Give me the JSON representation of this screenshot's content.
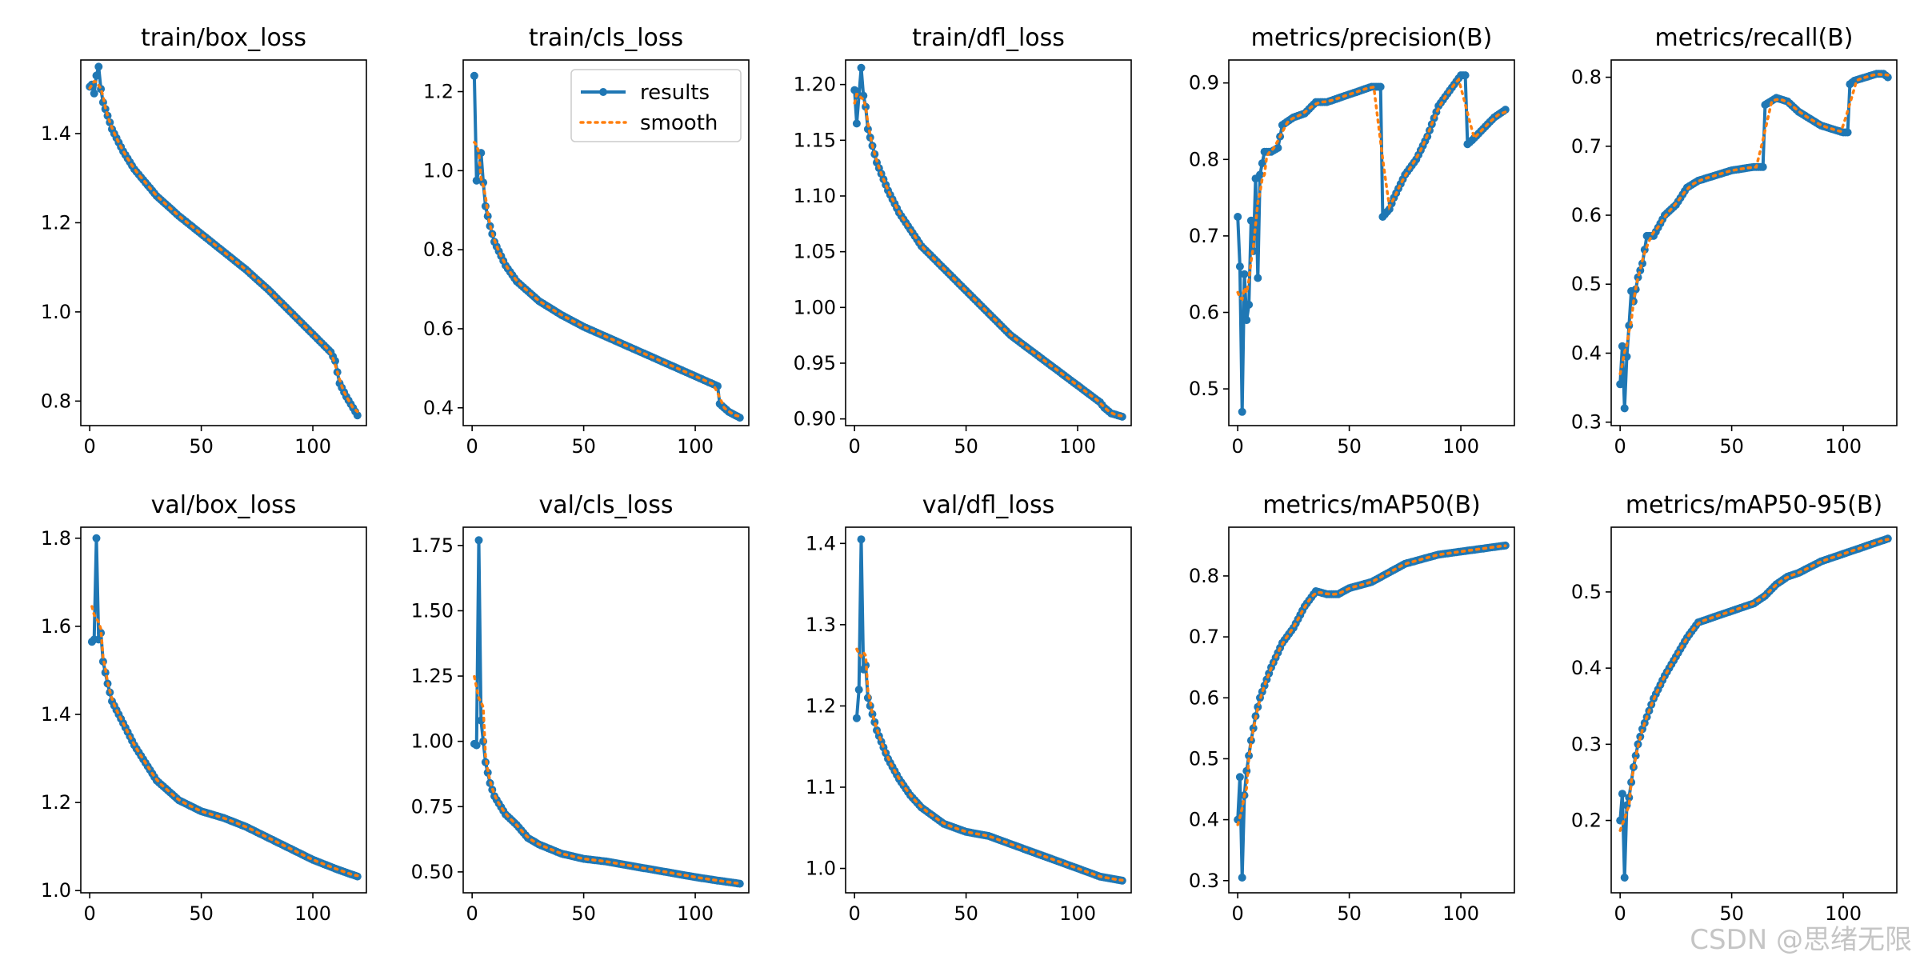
{
  "watermark": "CSDN @思绪无限",
  "colors": {
    "results": "#1f77b4",
    "smooth": "#ff7f0e",
    "axis": "#000000"
  },
  "legend": {
    "results_label": "results",
    "smooth_label": "smooth",
    "placement": "upper-right of train/cls_loss"
  },
  "chart_data": [
    {
      "type": "line",
      "title": "train/box_loss",
      "xlim": [
        -4,
        124
      ],
      "ylim": [
        0.745,
        1.565
      ],
      "xticks": [
        0,
        50,
        100
      ],
      "yticks": [
        0.8,
        1.0,
        1.2,
        1.4
      ],
      "ytick_labels": [
        "0.8",
        "1.0",
        "1.2",
        "1.4"
      ],
      "anchors": [
        [
          0,
          1.505
        ],
        [
          1,
          1.51
        ],
        [
          2,
          1.49
        ],
        [
          3,
          1.53
        ],
        [
          4,
          1.55
        ],
        [
          5,
          1.5
        ],
        [
          6,
          1.47
        ],
        [
          8,
          1.44
        ],
        [
          10,
          1.41
        ],
        [
          15,
          1.36
        ],
        [
          20,
          1.32
        ],
        [
          25,
          1.29
        ],
        [
          30,
          1.26
        ],
        [
          40,
          1.215
        ],
        [
          50,
          1.175
        ],
        [
          60,
          1.135
        ],
        [
          70,
          1.095
        ],
        [
          80,
          1.05
        ],
        [
          90,
          1.0
        ],
        [
          100,
          0.95
        ],
        [
          108,
          0.91
        ],
        [
          110,
          0.89
        ],
        [
          112,
          0.84
        ],
        [
          115,
          0.81
        ],
        [
          120,
          0.768
        ]
      ],
      "smooth_from": 0,
      "smooth_window": 2
    },
    {
      "type": "line",
      "title": "train/cls_loss",
      "xlim": [
        -4,
        124
      ],
      "ylim": [
        0.355,
        1.28
      ],
      "xticks": [
        0,
        50,
        100
      ],
      "yticks": [
        0.4,
        0.6,
        0.8,
        1.0,
        1.2
      ],
      "ytick_labels": [
        "0.4",
        "0.6",
        "0.8",
        "1.0",
        "1.2"
      ],
      "anchors": [
        [
          1,
          1.24
        ],
        [
          2,
          0.975
        ],
        [
          3,
          1.0
        ],
        [
          4,
          1.045
        ],
        [
          5,
          0.97
        ],
        [
          6,
          0.91
        ],
        [
          8,
          0.86
        ],
        [
          10,
          0.82
        ],
        [
          15,
          0.76
        ],
        [
          20,
          0.72
        ],
        [
          30,
          0.67
        ],
        [
          40,
          0.635
        ],
        [
          50,
          0.605
        ],
        [
          60,
          0.58
        ],
        [
          70,
          0.555
        ],
        [
          80,
          0.53
        ],
        [
          90,
          0.505
        ],
        [
          100,
          0.48
        ],
        [
          110,
          0.455
        ],
        [
          111,
          0.41
        ],
        [
          115,
          0.39
        ],
        [
          120,
          0.375
        ]
      ],
      "smooth_from": 1,
      "smooth_window": 2
    },
    {
      "type": "line",
      "title": "train/dfl_loss",
      "xlim": [
        -4,
        124
      ],
      "ylim": [
        0.894,
        1.222
      ],
      "xticks": [
        0,
        50,
        100
      ],
      "yticks": [
        0.9,
        0.95,
        1.0,
        1.05,
        1.1,
        1.15,
        1.2
      ],
      "ytick_labels": [
        "0.90",
        "0.95",
        "1.00",
        "1.05",
        "1.10",
        "1.15",
        "1.20"
      ],
      "anchors": [
        [
          0,
          1.195
        ],
        [
          1,
          1.165
        ],
        [
          2,
          1.19
        ],
        [
          3,
          1.215
        ],
        [
          4,
          1.19
        ],
        [
          5,
          1.18
        ],
        [
          6,
          1.16
        ],
        [
          10,
          1.13
        ],
        [
          15,
          1.105
        ],
        [
          20,
          1.085
        ],
        [
          30,
          1.055
        ],
        [
          40,
          1.035
        ],
        [
          50,
          1.015
        ],
        [
          60,
          0.995
        ],
        [
          70,
          0.975
        ],
        [
          80,
          0.96
        ],
        [
          90,
          0.945
        ],
        [
          100,
          0.93
        ],
        [
          110,
          0.915
        ],
        [
          112,
          0.91
        ],
        [
          115,
          0.905
        ],
        [
          120,
          0.902
        ]
      ],
      "smooth_from": 0,
      "smooth_window": 2
    },
    {
      "type": "line",
      "title": "metrics/precision(B)",
      "xlim": [
        -4,
        124
      ],
      "ylim": [
        0.452,
        0.93
      ],
      "xticks": [
        0,
        50,
        100
      ],
      "yticks": [
        0.5,
        0.6,
        0.7,
        0.8,
        0.9
      ],
      "ytick_labels": [
        "0.5",
        "0.6",
        "0.7",
        "0.8",
        "0.9"
      ],
      "anchors": [
        [
          0,
          0.725
        ],
        [
          1,
          0.66
        ],
        [
          2,
          0.47
        ],
        [
          3,
          0.65
        ],
        [
          4,
          0.59
        ],
        [
          5,
          0.61
        ],
        [
          6,
          0.72
        ],
        [
          7,
          0.68
        ],
        [
          8,
          0.775
        ],
        [
          9,
          0.645
        ],
        [
          10,
          0.78
        ],
        [
          12,
          0.81
        ],
        [
          15,
          0.81
        ],
        [
          18,
          0.815
        ],
        [
          20,
          0.845
        ],
        [
          25,
          0.855
        ],
        [
          30,
          0.86
        ],
        [
          35,
          0.875
        ],
        [
          40,
          0.875
        ],
        [
          50,
          0.885
        ],
        [
          55,
          0.89
        ],
        [
          60,
          0.895
        ],
        [
          64,
          0.895
        ],
        [
          65,
          0.725
        ],
        [
          68,
          0.735
        ],
        [
          70,
          0.75
        ],
        [
          75,
          0.78
        ],
        [
          80,
          0.8
        ],
        [
          85,
          0.83
        ],
        [
          90,
          0.87
        ],
        [
          95,
          0.89
        ],
        [
          100,
          0.91
        ],
        [
          102,
          0.91
        ],
        [
          103,
          0.82
        ],
        [
          105,
          0.825
        ],
        [
          110,
          0.84
        ],
        [
          115,
          0.855
        ],
        [
          120,
          0.865
        ]
      ],
      "smooth_from": 0,
      "smooth_window": 3
    },
    {
      "type": "line",
      "title": "metrics/recall(B)",
      "xlim": [
        -4,
        124
      ],
      "ylim": [
        0.295,
        0.825
      ],
      "xticks": [
        0,
        50,
        100
      ],
      "yticks": [
        0.3,
        0.4,
        0.5,
        0.6,
        0.7,
        0.8
      ],
      "ytick_labels": [
        "0.3",
        "0.4",
        "0.5",
        "0.6",
        "0.7",
        "0.8"
      ],
      "anchors": [
        [
          0,
          0.355
        ],
        [
          1,
          0.41
        ],
        [
          2,
          0.32
        ],
        [
          3,
          0.395
        ],
        [
          4,
          0.44
        ],
        [
          5,
          0.49
        ],
        [
          6,
          0.475
        ],
        [
          8,
          0.51
        ],
        [
          10,
          0.53
        ],
        [
          12,
          0.57
        ],
        [
          15,
          0.57
        ],
        [
          20,
          0.6
        ],
        [
          25,
          0.615
        ],
        [
          30,
          0.64
        ],
        [
          35,
          0.65
        ],
        [
          40,
          0.655
        ],
        [
          50,
          0.665
        ],
        [
          60,
          0.67
        ],
        [
          64,
          0.67
        ],
        [
          65,
          0.76
        ],
        [
          70,
          0.77
        ],
        [
          75,
          0.765
        ],
        [
          80,
          0.75
        ],
        [
          85,
          0.74
        ],
        [
          90,
          0.73
        ],
        [
          95,
          0.725
        ],
        [
          100,
          0.72
        ],
        [
          102,
          0.72
        ],
        [
          103,
          0.79
        ],
        [
          105,
          0.795
        ],
        [
          110,
          0.8
        ],
        [
          115,
          0.805
        ],
        [
          118,
          0.805
        ],
        [
          120,
          0.8
        ]
      ],
      "smooth_from": 0,
      "smooth_window": 3
    },
    {
      "type": "line",
      "title": "val/box_loss",
      "xlim": [
        -4,
        124
      ],
      "ylim": [
        0.995,
        1.825
      ],
      "xticks": [
        0,
        50,
        100
      ],
      "yticks": [
        1.0,
        1.2,
        1.4,
        1.6,
        1.8
      ],
      "ytick_labels": [
        "1.0",
        "1.2",
        "1.4",
        "1.6",
        "1.8"
      ],
      "anchors": [
        [
          1,
          1.565
        ],
        [
          2,
          1.57
        ],
        [
          3,
          1.8
        ],
        [
          4,
          1.57
        ],
        [
          5,
          1.585
        ],
        [
          6,
          1.52
        ],
        [
          8,
          1.47
        ],
        [
          10,
          1.43
        ],
        [
          15,
          1.38
        ],
        [
          20,
          1.33
        ],
        [
          25,
          1.29
        ],
        [
          30,
          1.25
        ],
        [
          40,
          1.205
        ],
        [
          50,
          1.18
        ],
        [
          60,
          1.165
        ],
        [
          70,
          1.145
        ],
        [
          80,
          1.12
        ],
        [
          90,
          1.095
        ],
        [
          100,
          1.07
        ],
        [
          110,
          1.05
        ],
        [
          120,
          1.032
        ]
      ],
      "smooth_from": 1,
      "smooth_window": 2
    },
    {
      "type": "line",
      "title": "val/cls_loss",
      "xlim": [
        -4,
        124
      ],
      "ylim": [
        0.42,
        1.82
      ],
      "xticks": [
        0,
        50,
        100
      ],
      "yticks": [
        0.5,
        0.75,
        1.0,
        1.25,
        1.5,
        1.75
      ],
      "ytick_labels": [
        "0.50",
        "0.75",
        "1.00",
        "1.25",
        "1.50",
        "1.75"
      ],
      "anchors": [
        [
          1,
          0.99
        ],
        [
          2,
          0.985
        ],
        [
          3,
          1.77
        ],
        [
          4,
          1.08
        ],
        [
          5,
          1.0
        ],
        [
          6,
          0.92
        ],
        [
          8,
          0.84
        ],
        [
          10,
          0.79
        ],
        [
          15,
          0.72
        ],
        [
          20,
          0.68
        ],
        [
          25,
          0.63
        ],
        [
          30,
          0.605
        ],
        [
          40,
          0.57
        ],
        [
          50,
          0.55
        ],
        [
          60,
          0.54
        ],
        [
          70,
          0.525
        ],
        [
          80,
          0.51
        ],
        [
          90,
          0.495
        ],
        [
          100,
          0.48
        ],
        [
          110,
          0.467
        ],
        [
          120,
          0.455
        ]
      ],
      "smooth_from": 1,
      "smooth_window": 2
    },
    {
      "type": "line",
      "title": "val/dfl_loss",
      "xlim": [
        -4,
        124
      ],
      "ylim": [
        0.97,
        1.42
      ],
      "xticks": [
        0,
        50,
        100
      ],
      "yticks": [
        1.0,
        1.1,
        1.2,
        1.3,
        1.4
      ],
      "ytick_labels": [
        "1.0",
        "1.1",
        "1.2",
        "1.3",
        "1.4"
      ],
      "anchors": [
        [
          1,
          1.185
        ],
        [
          2,
          1.22
        ],
        [
          3,
          1.405
        ],
        [
          4,
          1.245
        ],
        [
          5,
          1.25
        ],
        [
          6,
          1.21
        ],
        [
          8,
          1.19
        ],
        [
          10,
          1.17
        ],
        [
          15,
          1.135
        ],
        [
          20,
          1.11
        ],
        [
          25,
          1.09
        ],
        [
          30,
          1.075
        ],
        [
          40,
          1.055
        ],
        [
          50,
          1.045
        ],
        [
          60,
          1.04
        ],
        [
          70,
          1.03
        ],
        [
          80,
          1.02
        ],
        [
          90,
          1.01
        ],
        [
          100,
          1.0
        ],
        [
          110,
          0.99
        ],
        [
          120,
          0.985
        ]
      ],
      "smooth_from": 1,
      "smooth_window": 2
    },
    {
      "type": "line",
      "title": "metrics/mAP50(B)",
      "xlim": [
        -4,
        124
      ],
      "ylim": [
        0.28,
        0.88
      ],
      "xticks": [
        0,
        50,
        100
      ],
      "yticks": [
        0.3,
        0.4,
        0.5,
        0.6,
        0.7,
        0.8
      ],
      "ytick_labels": [
        "0.3",
        "0.4",
        "0.5",
        "0.6",
        "0.7",
        "0.8"
      ],
      "anchors": [
        [
          0,
          0.4
        ],
        [
          1,
          0.47
        ],
        [
          2,
          0.305
        ],
        [
          3,
          0.44
        ],
        [
          4,
          0.48
        ],
        [
          6,
          0.53
        ],
        [
          8,
          0.57
        ],
        [
          10,
          0.6
        ],
        [
          15,
          0.65
        ],
        [
          20,
          0.69
        ],
        [
          25,
          0.715
        ],
        [
          30,
          0.75
        ],
        [
          35,
          0.775
        ],
        [
          40,
          0.77
        ],
        [
          45,
          0.77
        ],
        [
          50,
          0.78
        ],
        [
          60,
          0.79
        ],
        [
          70,
          0.81
        ],
        [
          75,
          0.82
        ],
        [
          80,
          0.825
        ],
        [
          90,
          0.835
        ],
        [
          100,
          0.84
        ],
        [
          110,
          0.845
        ],
        [
          120,
          0.85
        ]
      ],
      "smooth_from": 0,
      "smooth_window": 2
    },
    {
      "type": "line",
      "title": "metrics/mAP50-95(B)",
      "xlim": [
        -4,
        124
      ],
      "ylim": [
        0.105,
        0.585
      ],
      "xticks": [
        0,
        50,
        100
      ],
      "yticks": [
        0.2,
        0.3,
        0.4,
        0.5
      ],
      "ytick_labels": [
        "0.2",
        "0.3",
        "0.4",
        "0.5"
      ],
      "anchors": [
        [
          0,
          0.2
        ],
        [
          1,
          0.235
        ],
        [
          2,
          0.125
        ],
        [
          3,
          0.22
        ],
        [
          4,
          0.23
        ],
        [
          6,
          0.27
        ],
        [
          8,
          0.3
        ],
        [
          10,
          0.32
        ],
        [
          15,
          0.36
        ],
        [
          20,
          0.39
        ],
        [
          25,
          0.415
        ],
        [
          30,
          0.44
        ],
        [
          35,
          0.46
        ],
        [
          40,
          0.465
        ],
        [
          45,
          0.47
        ],
        [
          50,
          0.475
        ],
        [
          60,
          0.485
        ],
        [
          65,
          0.495
        ],
        [
          70,
          0.51
        ],
        [
          75,
          0.52
        ],
        [
          80,
          0.525
        ],
        [
          90,
          0.54
        ],
        [
          100,
          0.55
        ],
        [
          110,
          0.56
        ],
        [
          120,
          0.57
        ]
      ],
      "smooth_from": 0,
      "smooth_window": 2
    }
  ]
}
